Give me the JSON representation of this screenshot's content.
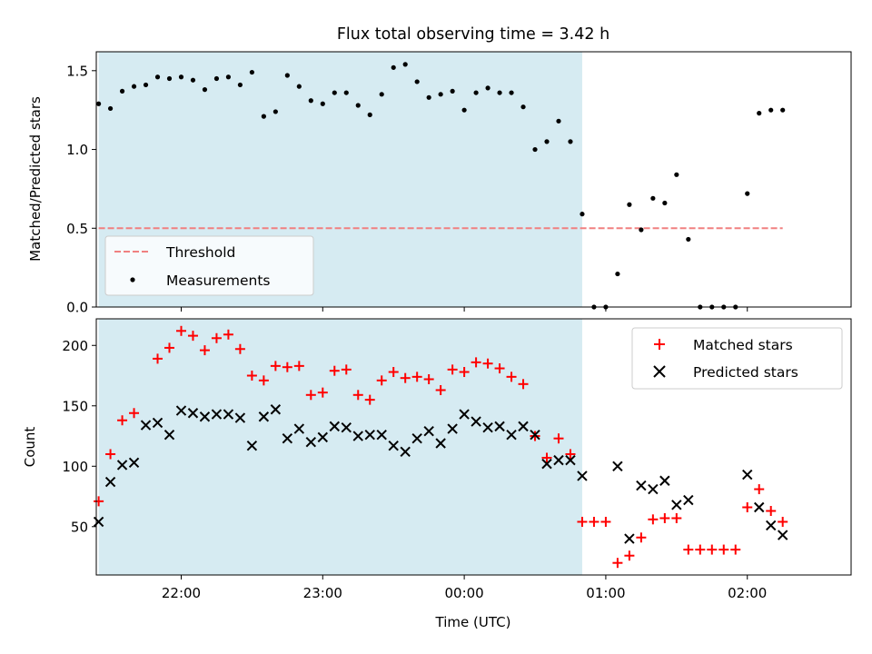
{
  "chart_data": [
    {
      "type": "scatter",
      "title": "Flux total observing time = 3.42 h",
      "ylabel": "Matched/Predicted stars",
      "xlim": [
        "21:24",
        "02:44"
      ],
      "ylim": [
        0,
        1.62
      ],
      "yticks": [
        0.0,
        0.5,
        1.0,
        1.5
      ],
      "ytick_labels": [
        "0.0",
        "0.5",
        "1.0",
        "1.5"
      ],
      "shaded_region": {
        "start": "21:25",
        "end": "00:50",
        "color": "#add8e6"
      },
      "threshold": {
        "name": "Threshold",
        "value": 0.5,
        "start": "21:25",
        "end": "02:15",
        "color": "#f08080"
      },
      "legend": {
        "position": "lower-left",
        "entries": [
          "Threshold",
          "Measurements"
        ]
      },
      "series": [
        {
          "name": "Measurements",
          "marker": "dot",
          "color": "#000000",
          "points": [
            [
              "21:25",
              1.29
            ],
            [
              "21:30",
              1.26
            ],
            [
              "21:35",
              1.37
            ],
            [
              "21:40",
              1.4
            ],
            [
              "21:45",
              1.41
            ],
            [
              "21:50",
              1.46
            ],
            [
              "21:55",
              1.45
            ],
            [
              "22:00",
              1.46
            ],
            [
              "22:05",
              1.44
            ],
            [
              "22:10",
              1.38
            ],
            [
              "22:15",
              1.45
            ],
            [
              "22:20",
              1.46
            ],
            [
              "22:25",
              1.41
            ],
            [
              "22:30",
              1.49
            ],
            [
              "22:35",
              1.21
            ],
            [
              "22:40",
              1.24
            ],
            [
              "22:45",
              1.47
            ],
            [
              "22:50",
              1.4
            ],
            [
              "22:55",
              1.31
            ],
            [
              "23:00",
              1.29
            ],
            [
              "23:05",
              1.36
            ],
            [
              "23:10",
              1.36
            ],
            [
              "23:15",
              1.28
            ],
            [
              "23:20",
              1.22
            ],
            [
              "23:25",
              1.35
            ],
            [
              "23:30",
              1.52
            ],
            [
              "23:35",
              1.54
            ],
            [
              "23:40",
              1.43
            ],
            [
              "23:45",
              1.33
            ],
            [
              "23:50",
              1.35
            ],
            [
              "23:55",
              1.37
            ],
            [
              "00:00",
              1.25
            ],
            [
              "00:05",
              1.36
            ],
            [
              "00:10",
              1.39
            ],
            [
              "00:15",
              1.36
            ],
            [
              "00:20",
              1.36
            ],
            [
              "00:25",
              1.27
            ],
            [
              "00:30",
              1.0
            ],
            [
              "00:35",
              1.05
            ],
            [
              "00:40",
              1.18
            ],
            [
              "00:45",
              1.05
            ],
            [
              "00:50",
              0.59
            ],
            [
              "00:55",
              0.0
            ],
            [
              "01:00",
              0.0
            ],
            [
              "01:05",
              0.21
            ],
            [
              "01:10",
              0.65
            ],
            [
              "01:15",
              0.49
            ],
            [
              "01:20",
              0.69
            ],
            [
              "01:25",
              0.66
            ],
            [
              "01:30",
              0.84
            ],
            [
              "01:35",
              0.43
            ],
            [
              "01:40",
              0.0
            ],
            [
              "01:45",
              0.0
            ],
            [
              "01:50",
              0.0
            ],
            [
              "01:55",
              0.0
            ],
            [
              "02:00",
              0.72
            ],
            [
              "02:05",
              1.23
            ],
            [
              "02:10",
              1.25
            ],
            [
              "02:15",
              1.25
            ]
          ]
        }
      ]
    },
    {
      "type": "scatter",
      "xlabel": "Time (UTC)",
      "ylabel": "Count",
      "xlim": [
        "21:24",
        "02:44"
      ],
      "ylim": [
        10,
        222
      ],
      "yticks": [
        50,
        100,
        150,
        200
      ],
      "ytick_labels": [
        "50",
        "100",
        "150",
        "200"
      ],
      "xticks": [
        "22:00",
        "23:00",
        "00:00",
        "01:00",
        "02:00"
      ],
      "xtick_labels": [
        "22:00",
        "23:00",
        "00:00",
        "01:00",
        "02:00"
      ],
      "shaded_region": {
        "start": "21:25",
        "end": "00:50",
        "color": "#add8e6"
      },
      "legend": {
        "position": "upper-right",
        "entries": [
          "Matched stars",
          "Predicted stars"
        ]
      },
      "series": [
        {
          "name": "Matched stars",
          "marker": "plus",
          "color": "#ff0000",
          "points": [
            [
              "21:25",
              71
            ],
            [
              "21:30",
              110
            ],
            [
              "21:35",
              138
            ],
            [
              "21:40",
              144
            ],
            [
              "21:50",
              189
            ],
            [
              "21:55",
              198
            ],
            [
              "22:00",
              212
            ],
            [
              "22:05",
              208
            ],
            [
              "22:10",
              196
            ],
            [
              "22:15",
              206
            ],
            [
              "22:20",
              209
            ],
            [
              "22:25",
              197
            ],
            [
              "22:30",
              175
            ],
            [
              "22:35",
              171
            ],
            [
              "22:40",
              183
            ],
            [
              "22:45",
              182
            ],
            [
              "22:50",
              183
            ],
            [
              "22:55",
              159
            ],
            [
              "23:00",
              161
            ],
            [
              "23:05",
              179
            ],
            [
              "23:10",
              180
            ],
            [
              "23:15",
              159
            ],
            [
              "23:20",
              155
            ],
            [
              "23:25",
              171
            ],
            [
              "23:30",
              178
            ],
            [
              "23:35",
              173
            ],
            [
              "23:40",
              174
            ],
            [
              "23:45",
              172
            ],
            [
              "23:50",
              163
            ],
            [
              "23:55",
              180
            ],
            [
              "00:00",
              178
            ],
            [
              "00:05",
              186
            ],
            [
              "00:10",
              185
            ],
            [
              "00:15",
              181
            ],
            [
              "00:20",
              174
            ],
            [
              "00:25",
              168
            ],
            [
              "00:30",
              125
            ],
            [
              "00:35",
              107
            ],
            [
              "00:40",
              123
            ],
            [
              "00:45",
              110
            ],
            [
              "00:50",
              54
            ],
            [
              "00:55",
              54
            ],
            [
              "01:00",
              54
            ],
            [
              "01:05",
              20
            ],
            [
              "01:10",
              26
            ],
            [
              "01:15",
              41
            ],
            [
              "01:20",
              56
            ],
            [
              "01:25",
              57
            ],
            [
              "01:30",
              57
            ],
            [
              "01:35",
              31
            ],
            [
              "01:40",
              31
            ],
            [
              "01:45",
              31
            ],
            [
              "01:50",
              31
            ],
            [
              "01:55",
              31
            ],
            [
              "02:00",
              66
            ],
            [
              "02:05",
              81
            ],
            [
              "02:10",
              63
            ],
            [
              "02:15",
              54
            ]
          ]
        },
        {
          "name": "Predicted stars",
          "marker": "x",
          "color": "#000000",
          "points": [
            [
              "21:25",
              54
            ],
            [
              "21:30",
              87
            ],
            [
              "21:35",
              101
            ],
            [
              "21:40",
              103
            ],
            [
              "21:45",
              134
            ],
            [
              "21:50",
              136
            ],
            [
              "21:55",
              126
            ],
            [
              "22:00",
              146
            ],
            [
              "22:05",
              144
            ],
            [
              "22:10",
              141
            ],
            [
              "22:15",
              143
            ],
            [
              "22:20",
              143
            ],
            [
              "22:25",
              140
            ],
            [
              "22:30",
              117
            ],
            [
              "22:35",
              141
            ],
            [
              "22:40",
              147
            ],
            [
              "22:45",
              123
            ],
            [
              "22:50",
              131
            ],
            [
              "22:55",
              120
            ],
            [
              "23:00",
              124
            ],
            [
              "23:05",
              133
            ],
            [
              "23:10",
              132
            ],
            [
              "23:15",
              125
            ],
            [
              "23:20",
              126
            ],
            [
              "23:25",
              126
            ],
            [
              "23:30",
              117
            ],
            [
              "23:35",
              112
            ],
            [
              "23:40",
              123
            ],
            [
              "23:45",
              129
            ],
            [
              "23:50",
              119
            ],
            [
              "23:55",
              131
            ],
            [
              "00:00",
              143
            ],
            [
              "00:05",
              137
            ],
            [
              "00:10",
              132
            ],
            [
              "00:15",
              133
            ],
            [
              "00:20",
              126
            ],
            [
              "00:25",
              133
            ],
            [
              "00:30",
              126
            ],
            [
              "00:35",
              102
            ],
            [
              "00:40",
              105
            ],
            [
              "00:45",
              105
            ],
            [
              "00:50",
              92
            ],
            [
              "01:05",
              100
            ],
            [
              "01:10",
              40
            ],
            [
              "01:15",
              84
            ],
            [
              "01:20",
              81
            ],
            [
              "01:25",
              88
            ],
            [
              "01:30",
              68
            ],
            [
              "01:35",
              72
            ],
            [
              "02:00",
              93
            ],
            [
              "02:05",
              66
            ],
            [
              "02:10",
              51
            ],
            [
              "02:15",
              43
            ]
          ]
        }
      ]
    }
  ]
}
